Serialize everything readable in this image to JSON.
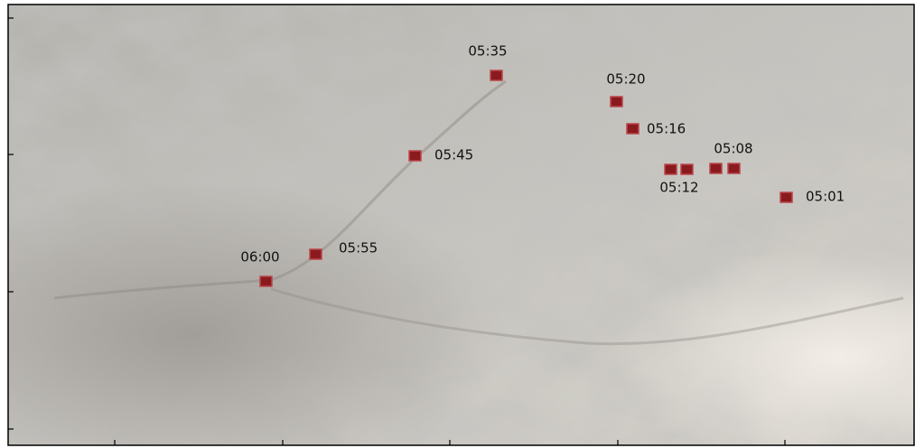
{
  "markers": [
    {
      "label": "05:35"
    },
    {
      "label": "05:20"
    },
    {
      "label": "05:16"
    },
    {
      "label": "05:08"
    },
    {
      "label": "05:12"
    },
    {
      "label": "05:01"
    },
    {
      "label": "05:45"
    },
    {
      "label": "05:55"
    },
    {
      "label": "06:00"
    }
  ]
}
